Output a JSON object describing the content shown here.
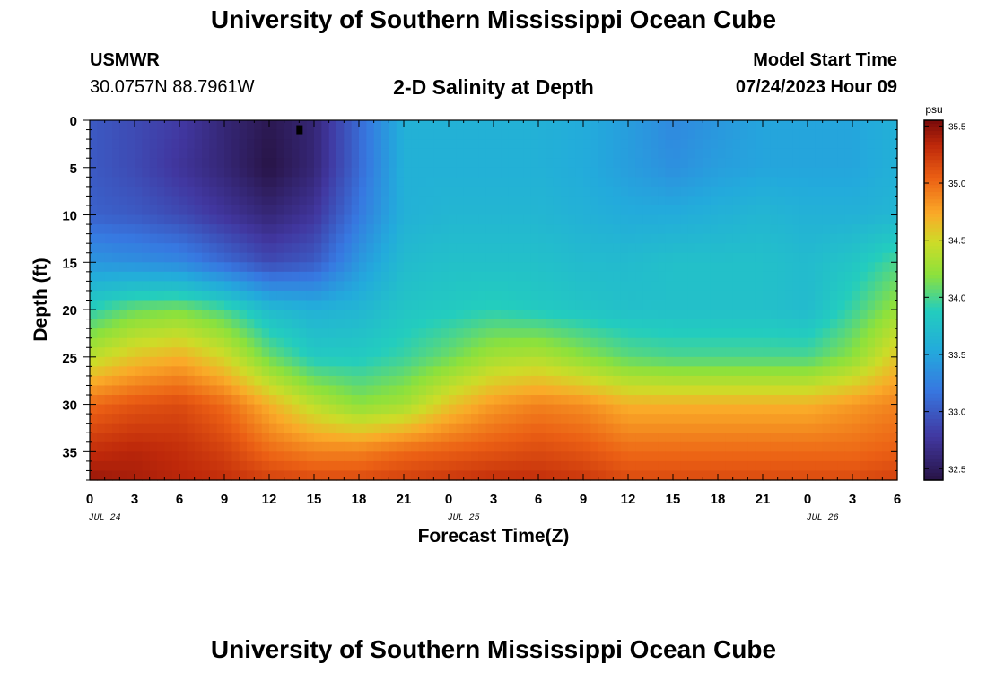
{
  "header": {
    "title": "University of Southern Mississippi Ocean Cube",
    "station": "USMWR",
    "coords": "30.0757N  88.7961W",
    "subtitle": "2-D Salinity at Depth",
    "model_label": "Model Start Time",
    "model_time": "07/24/2023 Hour 09"
  },
  "footer": {
    "title": "University of Southern Mississippi Ocean Cube"
  },
  "chart_data": {
    "type": "heatmap",
    "title": "2-D Salinity at Depth",
    "xlabel": "Forecast Time(Z)",
    "ylabel": "Depth (ft)",
    "x_tick_labels": [
      "0",
      "3",
      "6",
      "9",
      "12",
      "15",
      "18",
      "21",
      "0",
      "3",
      "6",
      "9",
      "12",
      "15",
      "18",
      "21",
      "0",
      "3",
      "6"
    ],
    "date_labels": [
      {
        "label": "JUL 24",
        "hour": 0
      },
      {
        "label": "JUL 25",
        "hour": 24
      },
      {
        "label": "JUL 26",
        "hour": 48
      }
    ],
    "xlim_hours": [
      0,
      54
    ],
    "y_ticks": [
      0,
      5,
      10,
      15,
      20,
      25,
      30,
      35
    ],
    "ylim": [
      0,
      38
    ],
    "y_inverted": true,
    "colorbar": {
      "unit": "psu",
      "ticks": [
        "35.5",
        "35.0",
        "34.5",
        "34.0",
        "33.5",
        "33.0",
        "32.5"
      ],
      "range": [
        32.4,
        35.55
      ]
    },
    "grid_hours": [
      0,
      3,
      6,
      9,
      12,
      15,
      18,
      21,
      24,
      27,
      30,
      33,
      36,
      39,
      42,
      45,
      48,
      51,
      54
    ],
    "grid_depths_ft": [
      0,
      5,
      10,
      15,
      20,
      25,
      30,
      35,
      38
    ],
    "salinity_psu": [
      [
        33.0,
        32.9,
        32.8,
        32.6,
        32.45,
        32.6,
        33.1,
        33.6,
        33.6,
        33.6,
        33.6,
        33.55,
        33.45,
        33.3,
        33.4,
        33.5,
        33.5,
        33.5,
        33.6
      ],
      [
        33.0,
        32.9,
        32.75,
        32.6,
        32.4,
        32.6,
        33.1,
        33.6,
        33.6,
        33.6,
        33.6,
        33.55,
        33.45,
        33.35,
        33.45,
        33.5,
        33.5,
        33.5,
        33.6
      ],
      [
        33.05,
        33.0,
        32.9,
        32.75,
        32.6,
        32.75,
        33.2,
        33.6,
        33.65,
        33.65,
        33.65,
        33.6,
        33.55,
        33.55,
        33.6,
        33.65,
        33.6,
        33.6,
        33.65
      ],
      [
        33.4,
        33.35,
        33.3,
        33.1,
        32.9,
        33.0,
        33.4,
        33.7,
        33.75,
        33.75,
        33.75,
        33.7,
        33.7,
        33.75,
        33.75,
        33.75,
        33.7,
        33.8,
        34.0
      ],
      [
        33.9,
        34.1,
        34.15,
        34.0,
        33.7,
        33.6,
        33.65,
        33.8,
        33.85,
        33.9,
        33.85,
        33.8,
        33.75,
        33.75,
        33.75,
        33.75,
        33.7,
        33.95,
        34.25
      ],
      [
        34.4,
        34.6,
        34.7,
        34.5,
        34.1,
        33.85,
        33.85,
        33.95,
        34.1,
        34.3,
        34.35,
        34.2,
        34.05,
        34.0,
        34.0,
        34.0,
        34.0,
        34.2,
        34.6
      ],
      [
        35.0,
        35.1,
        35.15,
        35.0,
        34.7,
        34.4,
        34.2,
        34.3,
        34.6,
        34.8,
        34.9,
        34.85,
        34.7,
        34.7,
        34.7,
        34.7,
        34.7,
        34.8,
        34.9
      ],
      [
        35.3,
        35.35,
        35.3,
        35.2,
        35.0,
        34.9,
        34.9,
        35.0,
        35.05,
        35.1,
        35.15,
        35.1,
        35.0,
        35.0,
        35.0,
        35.0,
        35.0,
        35.0,
        35.05
      ],
      [
        35.45,
        35.4,
        35.35,
        35.3,
        35.2,
        35.15,
        35.15,
        35.2,
        35.25,
        35.3,
        35.3,
        35.25,
        35.15,
        35.15,
        35.15,
        35.15,
        35.15,
        35.15,
        35.2
      ]
    ],
    "marker": {
      "hour": 14,
      "depth_ft": 1
    }
  }
}
